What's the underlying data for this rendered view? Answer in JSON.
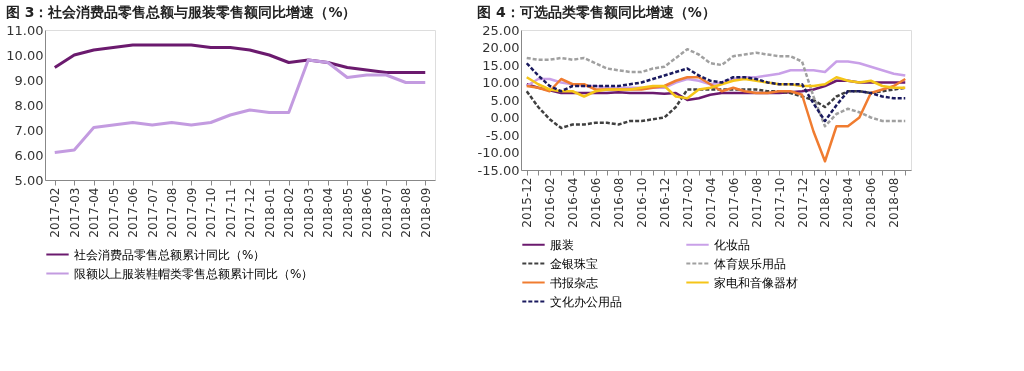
{
  "chart_data": [
    {
      "type": "line",
      "title": "图 3：社会消费品零售总额与服装零售额同比增速（%）",
      "categories": [
        "2017-02",
        "2017-03",
        "2017-04",
        "2017-05",
        "2017-06",
        "2017-07",
        "2017-08",
        "2017-09",
        "2017-10",
        "2017-11",
        "2017-12",
        "2018-01",
        "2018-02",
        "2018-03",
        "2018-04",
        "2018-05",
        "2018-06",
        "2018-07",
        "2018-08",
        "2018-09"
      ],
      "ylim": [
        5,
        11
      ],
      "yticks": [
        {
          "value": 5,
          "label": "5.00"
        },
        {
          "value": 6,
          "label": "6.00"
        },
        {
          "value": 7,
          "label": "7.00"
        },
        {
          "value": 8,
          "label": "8.00"
        },
        {
          "value": 9,
          "label": "9.00"
        },
        {
          "value": 10,
          "label": "10.00"
        },
        {
          "value": 11,
          "label": "11.00"
        }
      ],
      "legend": "bottom",
      "line_style": "solid",
      "series": [
        {
          "name": "社会消费品零售总额累计同比（%）",
          "color": "#6b1a6e",
          "values": [
            9.5,
            10.0,
            10.2,
            10.3,
            10.4,
            10.4,
            10.4,
            10.4,
            10.3,
            10.3,
            10.2,
            10.0,
            9.7,
            9.8,
            9.7,
            9.5,
            9.4,
            9.3,
            9.3,
            9.3
          ]
        },
        {
          "name": "限额以上服装鞋帽类零售总额累计同比（%）",
          "color": "#c39be0",
          "values": [
            6.1,
            6.2,
            7.1,
            7.2,
            7.3,
            7.2,
            7.3,
            7.2,
            7.3,
            7.6,
            7.8,
            7.7,
            7.7,
            9.8,
            9.7,
            9.1,
            9.2,
            9.2,
            8.9,
            8.9
          ]
        }
      ]
    },
    {
      "type": "line",
      "title": "图 4：可选品类零售额同比增速（%）",
      "categories": [
        "2015-12",
        null,
        "2016-02",
        null,
        "2016-04",
        null,
        "2016-06",
        null,
        "2016-08",
        null,
        "2016-10",
        null,
        "2016-12",
        null,
        "2017-02",
        null,
        "2017-04",
        null,
        "2017-06",
        null,
        "2017-08",
        null,
        "2017-10",
        null,
        "2017-12",
        null,
        "2018-02",
        null,
        "2018-04",
        null,
        "2018-06",
        null,
        "2018-08",
        null
      ],
      "ylim": [
        -15,
        25
      ],
      "yticks": [
        {
          "value": -15,
          "label": "-15.00"
        },
        {
          "value": -10,
          "label": "-10.00"
        },
        {
          "value": -5,
          "label": "-5.00"
        },
        {
          "value": 0,
          "label": "0.00"
        },
        {
          "value": 5,
          "label": "5.00"
        },
        {
          "value": 10,
          "label": "10.00"
        },
        {
          "value": 15,
          "label": "15.00"
        },
        {
          "value": 20,
          "label": "20.00"
        },
        {
          "value": 25,
          "label": "25.00"
        }
      ],
      "legend": "bottom",
      "series": [
        {
          "name": "服装",
          "color": "#6b1a6e",
          "line_style": "solid",
          "values": [
            9.5,
            8.5,
            7.8,
            7,
            7,
            7,
            7,
            7,
            7.2,
            7,
            7,
            7,
            6.8,
            7,
            5,
            5.5,
            6.5,
            7,
            7,
            7,
            7,
            7,
            7,
            7.2,
            7.5,
            8,
            9,
            10.5,
            10.5,
            10,
            10,
            10,
            10,
            10
          ]
        },
        {
          "name": "化妆品",
          "color": "#c9a0e8",
          "line_style": "solid",
          "values": [
            9,
            11,
            11,
            10,
            9.5,
            9,
            9,
            8.5,
            8.5,
            8.5,
            8.5,
            8.5,
            8.5,
            10,
            11,
            10.5,
            9.5,
            10,
            11,
            11.5,
            11.5,
            12,
            12.5,
            13.5,
            13.5,
            13.5,
            13,
            16,
            16,
            15.5,
            14.5,
            13.5,
            12.5,
            12
          ]
        },
        {
          "name": "金银珠宝",
          "color": "#404040",
          "line_style": "dashed",
          "values": [
            7.5,
            3,
            -0.5,
            -3,
            -2,
            -2,
            -1.5,
            -1.5,
            -2,
            -1,
            -1,
            -0.5,
            0,
            3,
            8,
            8,
            8,
            8,
            8,
            8,
            8,
            7.5,
            7.5,
            7,
            6,
            5,
            3,
            6,
            7.5,
            7.5,
            7,
            7.5,
            8,
            8.5
          ]
        },
        {
          "name": "体育娱乐用品",
          "color": "#a0a0a0",
          "line_style": "dashed",
          "values": [
            17,
            16.5,
            16.5,
            17,
            16.5,
            17,
            15.5,
            14,
            13.5,
            13,
            13,
            14,
            14.5,
            17,
            19.5,
            18,
            15.5,
            15,
            17.5,
            18,
            18.5,
            18,
            17.5,
            17.5,
            16,
            6,
            -2.5,
            1,
            2.5,
            1.5,
            0,
            -1,
            -1,
            -1
          ]
        },
        {
          "name": "书报杂志",
          "color": "#f07c30",
          "line_style": "solid",
          "values": [
            9,
            8.5,
            7.5,
            11,
            9.5,
            9.5,
            8,
            8,
            8,
            8,
            8,
            8.5,
            9,
            10.5,
            11.5,
            11.5,
            9.5,
            7.5,
            8.5,
            7.5,
            7,
            7,
            7.5,
            7.5,
            6.5,
            -4,
            -12.5,
            -2.5,
            -2.5,
            0,
            7,
            8,
            9,
            11
          ]
        },
        {
          "name": "家电和音像器材",
          "color": "#f5c518",
          "line_style": "solid",
          "values": [
            11.5,
            9.5,
            8,
            7.5,
            7.5,
            6,
            7.5,
            8,
            8,
            8,
            8.5,
            9,
            9,
            6,
            5.5,
            8,
            8.5,
            9.5,
            10.5,
            11,
            10.5,
            10,
            9.5,
            9.5,
            9,
            9,
            9.5,
            11.5,
            10.5,
            10,
            10.5,
            9,
            8.5,
            8.5
          ]
        },
        {
          "name": "文化办公用品",
          "color": "#1a1a5e",
          "line_style": "dashed",
          "values": [
            15.5,
            12,
            9,
            7.5,
            9,
            9,
            9,
            9,
            9,
            9.5,
            10,
            11,
            12,
            13,
            14,
            12,
            10.5,
            10,
            11.5,
            11.5,
            11,
            10,
            9.5,
            9.5,
            9.5,
            4,
            -1,
            3.5,
            7.5,
            7.5,
            7,
            6,
            5.5,
            5.5
          ]
        }
      ]
    }
  ]
}
